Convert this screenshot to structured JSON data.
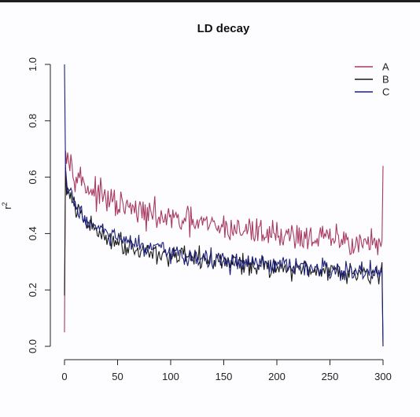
{
  "chart_data": {
    "type": "line",
    "title": "LD decay",
    "xlabel": "",
    "ylabel": "r",
    "ylabel_superscript": "2",
    "xlim": [
      0,
      300
    ],
    "ylim": [
      0,
      1
    ],
    "x_ticks": [
      0,
      50,
      100,
      150,
      200,
      250,
      300
    ],
    "y_ticks": [
      0.0,
      0.2,
      0.4,
      0.6,
      0.8,
      1.0
    ],
    "y_tick_labels": [
      "0.0",
      "0.2",
      "0.4",
      "0.6",
      "0.8",
      "1.0"
    ],
    "grid": false,
    "legend_position": "top-right",
    "series": [
      {
        "name": "A",
        "color": "#a8395f",
        "start_value": 0.05,
        "end_value": 0.64,
        "x": [
          1,
          2,
          5,
          10,
          20,
          30,
          50,
          75,
          100,
          150,
          200,
          250,
          299
        ],
        "values": [
          0.74,
          0.7,
          0.66,
          0.62,
          0.57,
          0.54,
          0.5,
          0.47,
          0.45,
          0.42,
          0.4,
          0.38,
          0.36
        ],
        "noise": 0.025
      },
      {
        "name": "B",
        "color": "#1a1a1a",
        "start_value": 0.18,
        "end_value": 0.0,
        "x": [
          1,
          2,
          5,
          10,
          20,
          30,
          50,
          75,
          100,
          150,
          200,
          250,
          299
        ],
        "values": [
          0.61,
          0.57,
          0.53,
          0.49,
          0.44,
          0.41,
          0.37,
          0.34,
          0.32,
          0.3,
          0.28,
          0.27,
          0.26
        ],
        "noise": 0.018
      },
      {
        "name": "C",
        "color": "#1c1f7a",
        "start_value": 1.0,
        "end_value": 0.0,
        "x": [
          1,
          2,
          5,
          10,
          20,
          30,
          50,
          75,
          100,
          150,
          200,
          250,
          299
        ],
        "values": [
          0.62,
          0.58,
          0.54,
          0.5,
          0.45,
          0.42,
          0.38,
          0.35,
          0.33,
          0.3,
          0.285,
          0.27,
          0.26
        ],
        "noise": 0.018
      }
    ]
  }
}
